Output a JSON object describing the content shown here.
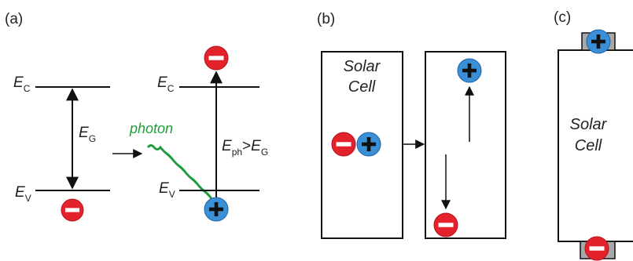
{
  "panels": {
    "a": "(a)",
    "b": "(b)",
    "c": "(c)"
  },
  "energy": {
    "E": "E",
    "C": "C",
    "V": "V",
    "G": "G",
    "ph": "ph",
    "gt": ">"
  },
  "photon_label": "photon",
  "cell": {
    "line1": "Solar",
    "line2": "Cell"
  },
  "colors": {
    "electron": "#e4222b",
    "hole": "#3a8fd6",
    "photon": "#1f9d3a",
    "contact": "#a8a8a8"
  },
  "icons": {
    "electron": "minus-circle-icon",
    "hole": "plus-circle-icon"
  }
}
